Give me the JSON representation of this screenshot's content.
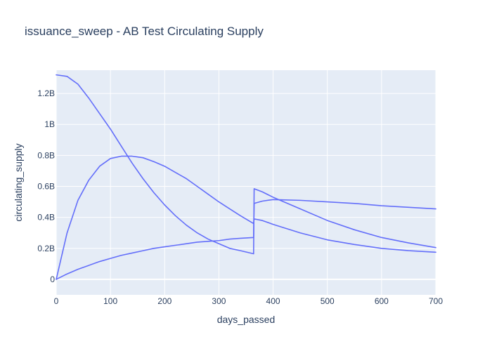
{
  "chart_data": {
    "type": "line",
    "title": "issuance_sweep - AB Test Circulating Supply",
    "xlabel": "days_passed",
    "ylabel": "circulating_supply",
    "xlim": [
      0,
      700
    ],
    "ylim": [
      -0.1,
      1.35
    ],
    "y_unit": "billions",
    "x_ticks": [
      0,
      100,
      200,
      300,
      400,
      500,
      600,
      700
    ],
    "y_ticks": [
      {
        "value": 0,
        "label": "0"
      },
      {
        "value": 0.2,
        "label": "0.2B"
      },
      {
        "value": 0.4,
        "label": "0.4B"
      },
      {
        "value": 0.6,
        "label": "0.6B"
      },
      {
        "value": 0.8,
        "label": "0.8B"
      },
      {
        "value": 1.0,
        "label": "1B"
      },
      {
        "value": 1.2,
        "label": "1.2B"
      }
    ],
    "grid": true,
    "legend": "none",
    "line_color": "#636efa",
    "plot_bg": "#e5ecf6",
    "series": [
      {
        "x": [
          0,
          20,
          40,
          60,
          80,
          100,
          120,
          140,
          160,
          180,
          200,
          220,
          240,
          260,
          280,
          300,
          320,
          340,
          364,
          365,
          380,
          400,
          450,
          500,
          550,
          600,
          650,
          700
        ],
        "values": [
          1.32,
          1.31,
          1.26,
          1.17,
          1.07,
          0.97,
          0.86,
          0.75,
          0.65,
          0.56,
          0.48,
          0.41,
          0.35,
          0.3,
          0.26,
          0.23,
          0.2,
          0.185,
          0.165,
          0.585,
          0.565,
          0.53,
          0.455,
          0.38,
          0.32,
          0.27,
          0.235,
          0.205
        ]
      },
      {
        "x": [
          0,
          20,
          40,
          60,
          80,
          100,
          120,
          140,
          160,
          180,
          200,
          220,
          240,
          260,
          280,
          300,
          320,
          340,
          364,
          365,
          380,
          400,
          450,
          500,
          550,
          600,
          650,
          700
        ],
        "values": [
          0.0,
          0.3,
          0.51,
          0.64,
          0.73,
          0.78,
          0.795,
          0.795,
          0.785,
          0.76,
          0.73,
          0.69,
          0.65,
          0.6,
          0.55,
          0.5,
          0.455,
          0.41,
          0.36,
          0.39,
          0.38,
          0.355,
          0.3,
          0.255,
          0.225,
          0.2,
          0.185,
          0.175
        ]
      },
      {
        "x": [
          0,
          20,
          40,
          60,
          80,
          100,
          120,
          140,
          160,
          180,
          200,
          220,
          240,
          260,
          280,
          300,
          320,
          340,
          364,
          365,
          380,
          400,
          450,
          500,
          550,
          600,
          650,
          700
        ],
        "values": [
          0.0,
          0.035,
          0.065,
          0.09,
          0.115,
          0.135,
          0.155,
          0.17,
          0.185,
          0.2,
          0.21,
          0.22,
          0.23,
          0.24,
          0.245,
          0.25,
          0.26,
          0.265,
          0.27,
          0.49,
          0.505,
          0.515,
          0.51,
          0.5,
          0.49,
          0.475,
          0.465,
          0.455
        ]
      }
    ]
  }
}
